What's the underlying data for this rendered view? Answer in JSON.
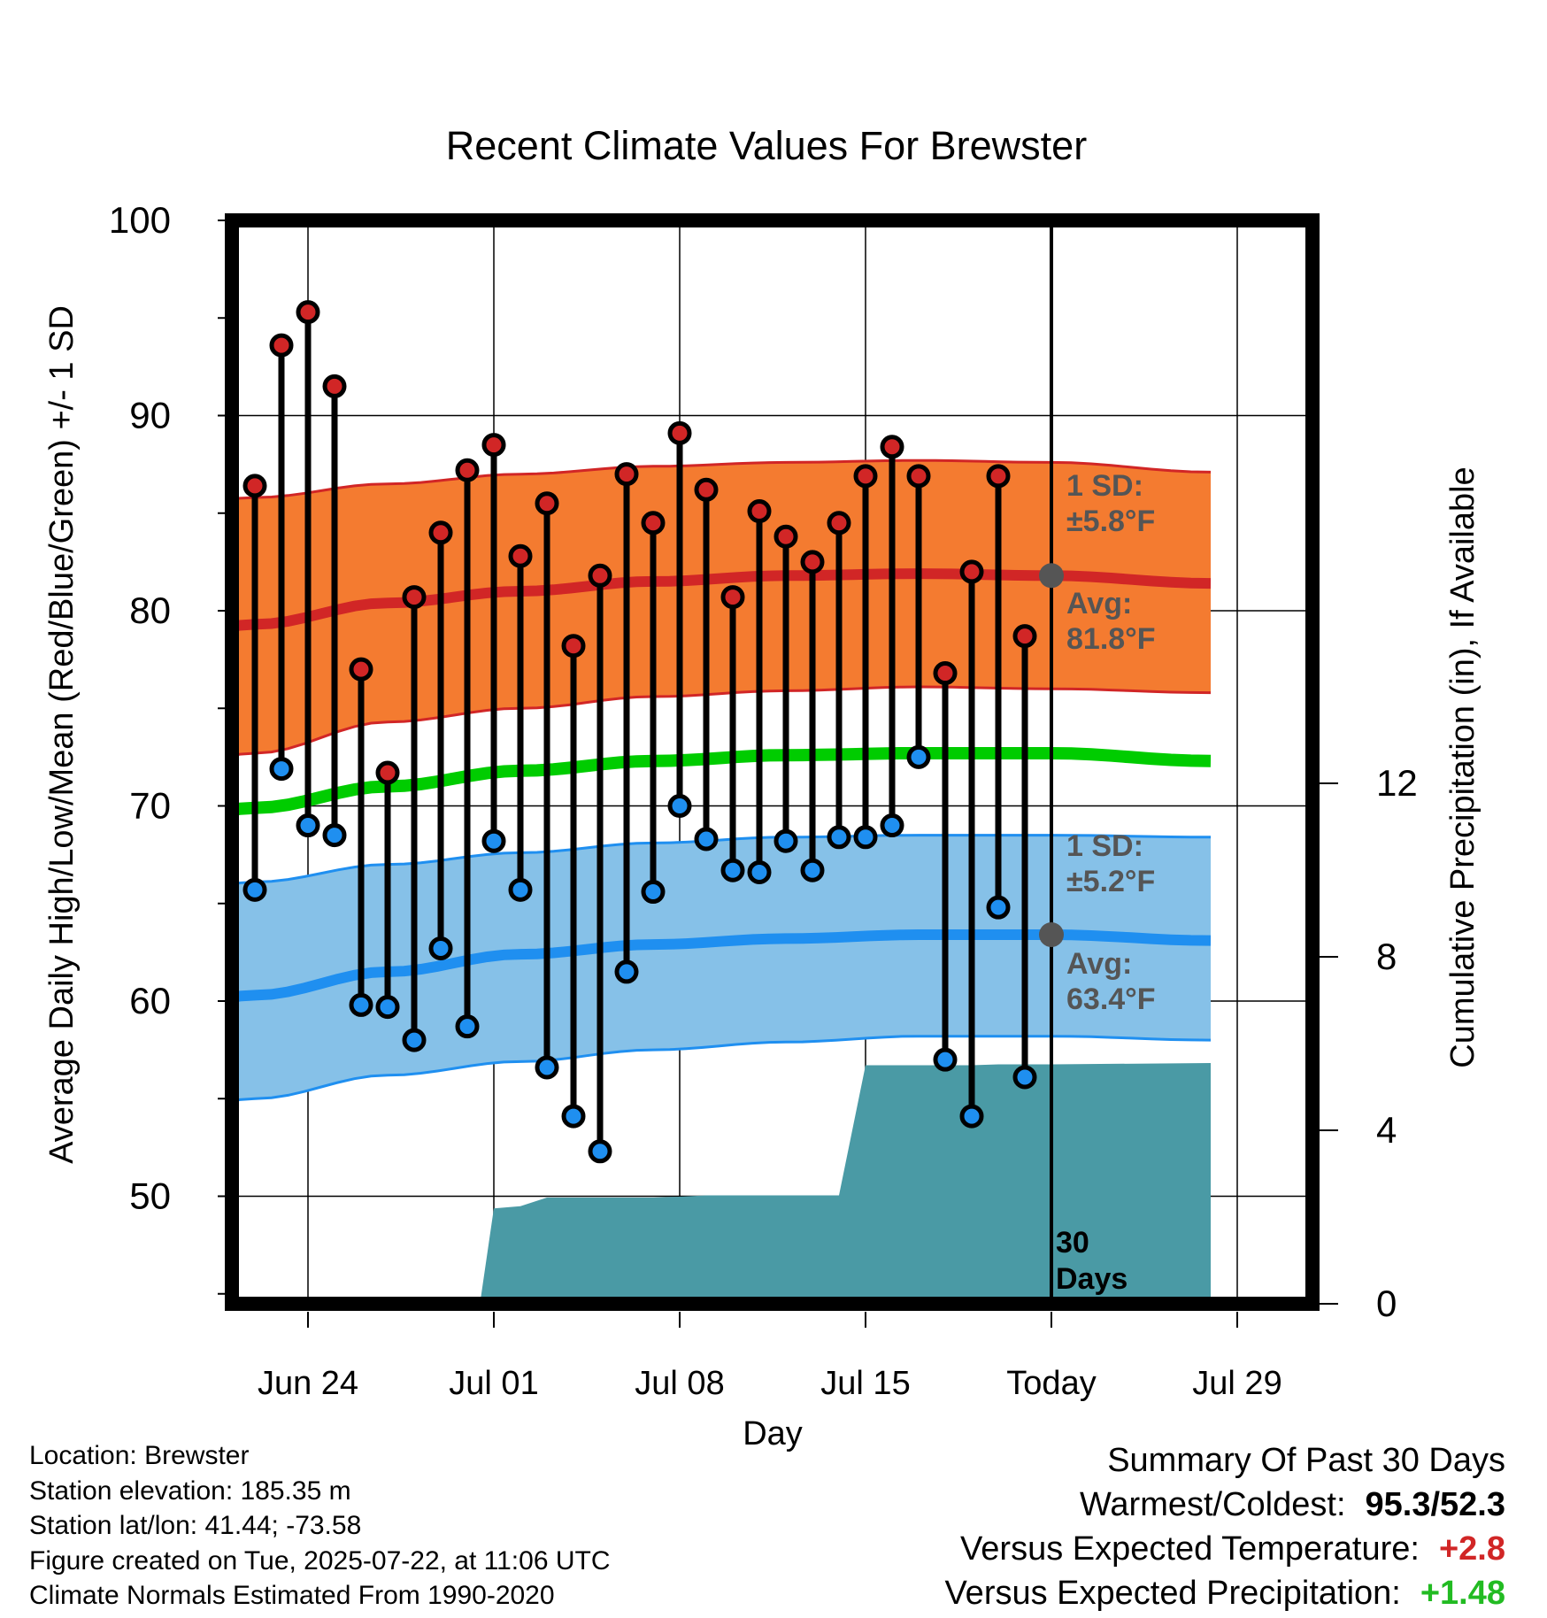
{
  "chart_data": {
    "type": "line",
    "title": "Recent Climate Values For Brewster",
    "xlabel": "Day",
    "ylabel": "Average Daily High/Low/Mean (Red/Blue/Green) +/- 1 SD",
    "y2label": "Cumulative Precipitation (in), If Available",
    "ylim": [
      44.5,
      100
    ],
    "y2lim": [
      0,
      20
    ],
    "xlim": [
      -6.5,
      34
    ],
    "yticks": [
      50,
      60,
      70,
      80,
      90,
      100
    ],
    "y2ticks": [
      0,
      4,
      8,
      12
    ],
    "xtick_labels": [
      {
        "day": 0,
        "label": "Jun 24"
      },
      {
        "day": 7,
        "label": "Jul 01"
      },
      {
        "day": 14,
        "label": "Jul 08"
      },
      {
        "day": 21,
        "label": "Jul 15"
      },
      {
        "day": 28,
        "label": "Today"
      },
      {
        "day": 35,
        "label": "Jul 29"
      }
    ],
    "today_day": 28,
    "grid": true,
    "days": [
      -2,
      -1,
      0,
      1,
      2,
      3,
      4,
      5,
      6,
      7,
      8,
      9,
      10,
      11,
      12,
      13,
      14,
      15,
      16,
      17,
      18,
      19,
      20,
      21,
      22,
      23,
      24,
      25,
      26,
      27
    ],
    "highs": [
      86.4,
      93.6,
      95.3,
      91.5,
      77.0,
      71.7,
      80.7,
      84.0,
      87.2,
      88.5,
      82.8,
      85.5,
      78.2,
      81.8,
      87.0,
      84.5,
      89.1,
      86.2,
      80.7,
      85.1,
      83.8,
      82.5,
      84.5,
      86.9,
      88.4,
      86.9,
      76.8,
      82.0,
      86.9,
      78.7
    ],
    "lows": [
      65.7,
      71.9,
      69.0,
      68.5,
      59.8,
      59.7,
      58.0,
      62.7,
      58.7,
      68.2,
      65.7,
      56.6,
      54.1,
      52.3,
      61.5,
      65.6,
      70.0,
      68.3,
      66.7,
      66.6,
      68.2,
      66.7,
      68.4,
      68.4,
      69.0,
      72.5,
      57.0,
      54.1,
      64.8,
      56.1
    ],
    "normal_high": {
      "x": [
        -6.5,
        -2,
        3,
        8,
        13,
        18,
        23,
        28,
        34
      ],
      "avg": [
        78.0,
        79.3,
        80.4,
        81.0,
        81.5,
        81.8,
        81.9,
        81.8,
        81.4
      ],
      "sd_upper": [
        84.8,
        85.8,
        86.5,
        87.0,
        87.4,
        87.6,
        87.7,
        87.6,
        87.1
      ],
      "sd_lower": [
        71.4,
        72.7,
        74.3,
        75.0,
        75.6,
        75.9,
        76.1,
        76.0,
        75.8
      ],
      "sd_label": "1 SD:",
      "sd_value": "±5.8°F",
      "avg_label": "Avg:",
      "avg_value": "81.8°F"
    },
    "normal_low": {
      "x": [
        -6.5,
        -2,
        3,
        8,
        13,
        18,
        23,
        28,
        34
      ],
      "avg": [
        59.1,
        60.3,
        61.5,
        62.4,
        62.9,
        63.2,
        63.4,
        63.4,
        63.1
      ],
      "sd_upper": [
        64.9,
        66.1,
        67.0,
        67.6,
        68.1,
        68.4,
        68.5,
        68.5,
        68.4
      ],
      "sd_lower": [
        53.6,
        55.0,
        56.2,
        56.9,
        57.5,
        57.9,
        58.2,
        58.2,
        58.0
      ],
      "sd_label": "1 SD:",
      "sd_value": "±5.2°F",
      "avg_label": "Avg:",
      "avg_value": "63.4°F"
    },
    "normal_mean": {
      "x": [
        -6.5,
        -2,
        3,
        8,
        13,
        18,
        23,
        28,
        34
      ],
      "values": [
        68.7,
        69.9,
        71.0,
        71.8,
        72.3,
        72.6,
        72.7,
        72.7,
        72.3
      ]
    },
    "precip_cumulative": {
      "x": [
        -6.5,
        1.5,
        2.5,
        4.5,
        5.5,
        6.5,
        7.0,
        8.0,
        9.0,
        10,
        11,
        12,
        13,
        14,
        15,
        16,
        17,
        18,
        19,
        20,
        21,
        22,
        23,
        24,
        25,
        26,
        27,
        28,
        34
      ],
      "values": [
        0,
        0,
        0.05,
        0.1,
        0.1,
        0.1,
        2.2,
        2.25,
        2.45,
        2.45,
        2.45,
        2.45,
        2.45,
        2.47,
        2.5,
        2.5,
        2.5,
        2.5,
        2.5,
        2.5,
        5.5,
        5.5,
        5.5,
        5.5,
        5.5,
        5.52,
        5.52,
        5.52,
        5.55
      ]
    },
    "days_label": "30 Days",
    "colors": {
      "high_band": "#f47b30",
      "high_line": "#d12626",
      "low_band": "#86c1e8",
      "low_line": "#1f8ff0",
      "mean_line": "#00cc00",
      "precip": "#4a9aa5",
      "marker_high": "#d12626",
      "marker_low": "#1f8ff0",
      "annotation": "#555555"
    }
  },
  "footer": {
    "location": "Location: Brewster",
    "elevation": "Station elevation: 185.35 m",
    "latlon": "Station lat/lon: 41.44; -73.58",
    "created": "Figure created on Tue, 2025-07-22, at 11:06 UTC",
    "normals": "Climate Normals Estimated From 1990-2020"
  },
  "summary": {
    "title": "Summary Of Past 30 Days",
    "warmest_coldest_label": "Warmest/Coldest:",
    "warmest_coldest_value": "95.3/52.3",
    "temp_label": "Versus Expected Temperature:",
    "temp_value": "+2.8",
    "temp_color": "#d12626",
    "precip_label": "Versus Expected Precipitation:",
    "precip_value": "+1.48",
    "precip_color": "#22bb22"
  }
}
